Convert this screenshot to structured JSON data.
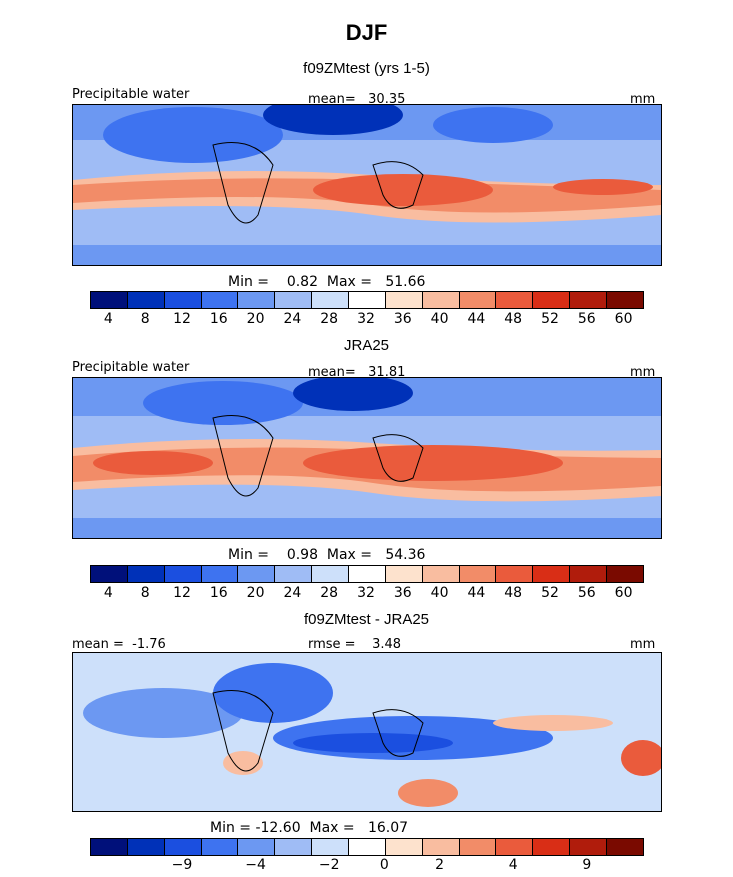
{
  "title": "DJF",
  "panels": [
    {
      "subtitle": "f09ZMtest (yrs 1-5)",
      "left_label": "Precipitable water",
      "center_label": "mean=   30.35",
      "right_label": "mm",
      "minmax": "Min =    0.82  Max =   51.66",
      "colorbar_ticks": [
        "4",
        "8",
        "12",
        "16",
        "20",
        "24",
        "28",
        "32",
        "36",
        "40",
        "44",
        "48",
        "52",
        "56",
        "60"
      ],
      "colors": [
        "#00107a",
        "#0031b8",
        "#1b4fe0",
        "#3e73f0",
        "#6c98f2",
        "#9fbcf5",
        "#cde0fa",
        "#ffffff",
        "#fde2cd",
        "#f9bda0",
        "#f28c68",
        "#ea5b3c",
        "#d92e16",
        "#b01c0c",
        "#7a0a00"
      ]
    },
    {
      "subtitle": "JRA25",
      "left_label": "Precipitable water",
      "center_label": "mean=   31.81",
      "right_label": "mm",
      "minmax": "Min =    0.98  Max =   54.36",
      "colorbar_ticks": [
        "4",
        "8",
        "12",
        "16",
        "20",
        "24",
        "28",
        "32",
        "36",
        "40",
        "44",
        "48",
        "52",
        "56",
        "60"
      ],
      "colors": [
        "#00107a",
        "#0031b8",
        "#1b4fe0",
        "#3e73f0",
        "#6c98f2",
        "#9fbcf5",
        "#cde0fa",
        "#ffffff",
        "#fde2cd",
        "#f9bda0",
        "#f28c68",
        "#ea5b3c",
        "#d92e16",
        "#b01c0c",
        "#7a0a00"
      ]
    },
    {
      "subtitle": "f09ZMtest - JRA25",
      "left_label": "mean =  -1.76",
      "center_label": "rmse =    3.48",
      "right_label": "mm",
      "minmax": "Min = -12.60  Max =   16.07",
      "colorbar_ticks": [
        "−9",
        "−4",
        "−2",
        "0",
        "2",
        "4",
        "9"
      ],
      "colors": [
        "#00107a",
        "#0031b8",
        "#1b4fe0",
        "#3e73f0",
        "#6c98f2",
        "#9fbcf5",
        "#cde0fa",
        "#ffffff",
        "#fde2cd",
        "#f9bda0",
        "#f28c68",
        "#ea5b3c",
        "#d92e16",
        "#b01c0c",
        "#7a0a00"
      ]
    }
  ]
}
